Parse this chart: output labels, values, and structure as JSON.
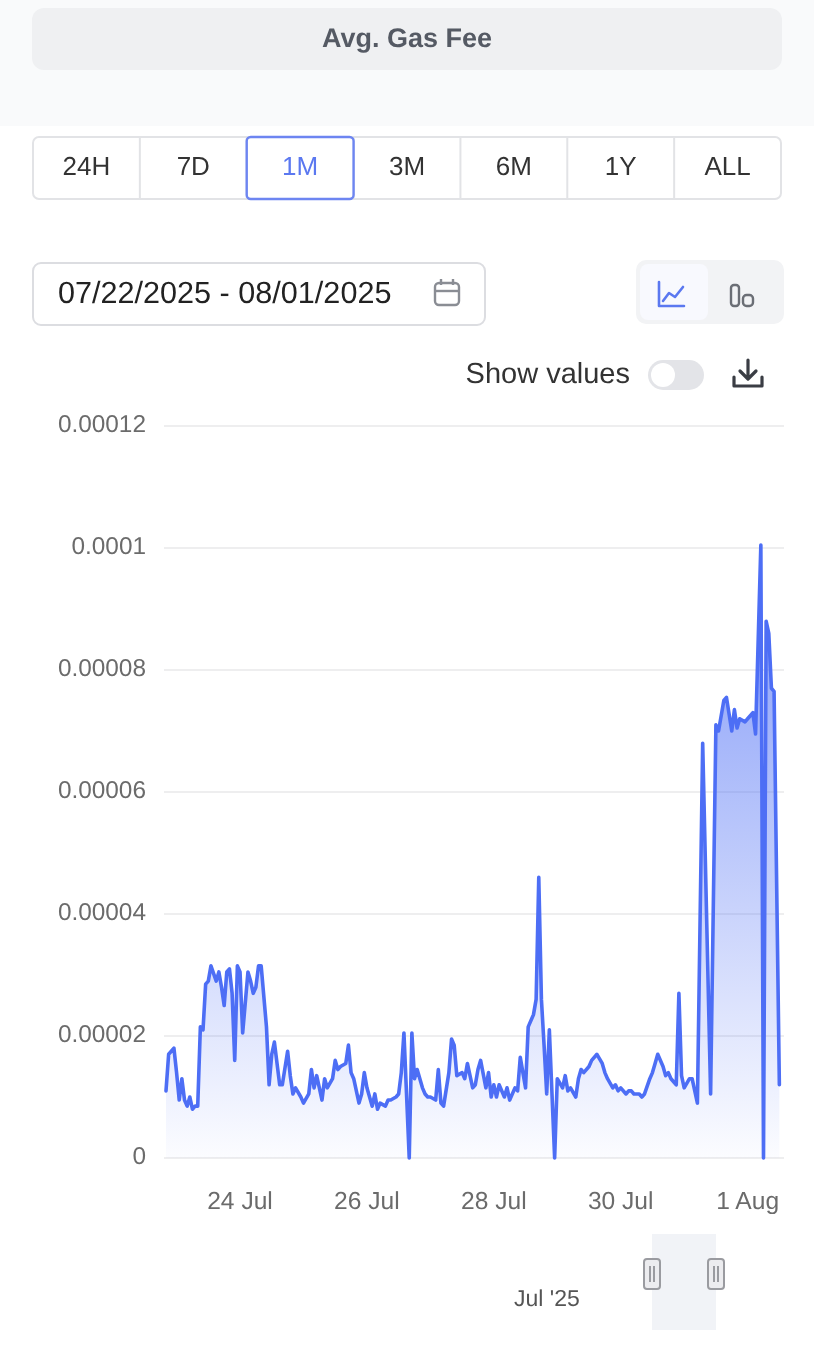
{
  "chart_data": {
    "type": "area",
    "title": "Avg. Gas Fee",
    "x": [
      "2025-07-22T20:00",
      "2025-07-22T21:00",
      "2025-07-22T23:00",
      "2025-07-23T00:00",
      "2025-07-23T01:00",
      "2025-07-23T02:00",
      "2025-07-23T03:00",
      "2025-07-23T04:00",
      "2025-07-23T05:00",
      "2025-07-23T06:00",
      "2025-07-23T07:00",
      "2025-07-23T08:00",
      "2025-07-23T09:00",
      "2025-07-23T10:00",
      "2025-07-23T11:00",
      "2025-07-23T12:00",
      "2025-07-23T13:00",
      "2025-07-23T15:00",
      "2025-07-23T16:00",
      "2025-07-23T17:00",
      "2025-07-23T18:00",
      "2025-07-23T19:00",
      "2025-07-23T20:00",
      "2025-07-23T21:00",
      "2025-07-23T22:00",
      "2025-07-23T23:00",
      "2025-07-24T00:00",
      "2025-07-24T01:00",
      "2025-07-24T03:00",
      "2025-07-24T04:00",
      "2025-07-24T05:00",
      "2025-07-24T06:00",
      "2025-07-24T07:00",
      "2025-07-24T08:00",
      "2025-07-24T10:00",
      "2025-07-24T11:00",
      "2025-07-24T12:00",
      "2025-07-24T13:00",
      "2025-07-24T15:00",
      "2025-07-24T16:00",
      "2025-07-24T18:00",
      "2025-07-24T19:00",
      "2025-07-24T20:00",
      "2025-07-24T21:00",
      "2025-07-24T23:00",
      "2025-07-25T00:00",
      "2025-07-25T02:00",
      "2025-07-25T03:00",
      "2025-07-25T04:00",
      "2025-07-25T05:00",
      "2025-07-25T07:00",
      "2025-07-25T08:00",
      "2025-07-25T09:00",
      "2025-07-25T11:00",
      "2025-07-25T12:00",
      "2025-07-25T13:00",
      "2025-07-25T14:00",
      "2025-07-25T16:00",
      "2025-07-25T17:00",
      "2025-07-25T18:00",
      "2025-07-25T19:00",
      "2025-07-25T21:00",
      "2025-07-25T22:00",
      "2025-07-25T23:00",
      "2025-07-26T00:00",
      "2025-07-26T02:00",
      "2025-07-26T03:00",
      "2025-07-26T04:00",
      "2025-07-26T05:00",
      "2025-07-26T07:00",
      "2025-07-26T08:00",
      "2025-07-26T09:00",
      "2025-07-26T11:00",
      "2025-07-26T12:00",
      "2025-07-26T13:00",
      "2025-07-26T14:00",
      "2025-07-26T16:00",
      "2025-07-26T17:00",
      "2025-07-26T18:00",
      "2025-07-26T19:00",
      "2025-07-26T21:00",
      "2025-07-26T22:00",
      "2025-07-26T23:00",
      "2025-07-27T00:00",
      "2025-07-27T02:00",
      "2025-07-27T03:00",
      "2025-07-27T04:00",
      "2025-07-27T05:00",
      "2025-07-27T07:00",
      "2025-07-27T08:00",
      "2025-07-27T09:00",
      "2025-07-27T10:00",
      "2025-07-27T12:00",
      "2025-07-27T13:00",
      "2025-07-27T14:00",
      "2025-07-27T16:00",
      "2025-07-27T17:00",
      "2025-07-27T18:00",
      "2025-07-27T19:00",
      "2025-07-27T21:00",
      "2025-07-27T22:00",
      "2025-07-27T23:00",
      "2025-07-28T00:00",
      "2025-07-28T01:00",
      "2025-07-28T02:00",
      "2025-07-28T04:00",
      "2025-07-28T05:00",
      "2025-07-28T06:00",
      "2025-07-28T08:00",
      "2025-07-28T09:00",
      "2025-07-28T10:00",
      "2025-07-28T12:00",
      "2025-07-28T13:00",
      "2025-07-28T15:00",
      "2025-07-28T16:00",
      "2025-07-28T17:00",
      "2025-07-28T18:00",
      "2025-07-28T19:00",
      "2025-07-28T20:00",
      "2025-07-28T21:00",
      "2025-07-28T23:00",
      "2025-07-29T00:00",
      "2025-07-29T02:00",
      "2025-07-29T03:00",
      "2025-07-29T04:00",
      "2025-07-29T05:00",
      "2025-07-29T07:00",
      "2025-07-29T08:00",
      "2025-07-29T09:00",
      "2025-07-29T10:00",
      "2025-07-29T12:00",
      "2025-07-29T13:00",
      "2025-07-29T15:00",
      "2025-07-29T17:00",
      "2025-07-29T18:00",
      "2025-07-29T19:00",
      "2025-07-29T21:00",
      "2025-07-29T22:00",
      "2025-07-29T23:00",
      "2025-07-30T00:00",
      "2025-07-30T02:00",
      "2025-07-30T03:00",
      "2025-07-30T04:00",
      "2025-07-30T05:00",
      "2025-07-30T07:00",
      "2025-07-30T08:00",
      "2025-07-30T09:00",
      "2025-07-30T11:00",
      "2025-07-30T12:00",
      "2025-07-30T13:00",
      "2025-07-30T14:00",
      "2025-07-30T16:00",
      "2025-07-30T17:00",
      "2025-07-30T18:00",
      "2025-07-30T19:00",
      "2025-07-30T21:00",
      "2025-07-30T22:00",
      "2025-07-30T23:00",
      "2025-07-31T00:00",
      "2025-07-31T02:00",
      "2025-07-31T03:00",
      "2025-07-31T04:00",
      "2025-07-31T05:00",
      "2025-07-31T07:00",
      "2025-07-31T10:00",
      "2025-07-31T12:00",
      "2025-07-31T13:00",
      "2025-07-31T15:00",
      "2025-07-31T16:00",
      "2025-07-31T18:00",
      "2025-07-31T19:00",
      "2025-07-31T20:00",
      "2025-07-31T21:00",
      "2025-07-31T23:00",
      "2025-08-01T00:00",
      "2025-08-01T02:00",
      "2025-08-01T03:00",
      "2025-08-01T05:00",
      "2025-08-01T06:00",
      "2025-08-01T07:00",
      "2025-08-01T08:00",
      "2025-08-01T09:00",
      "2025-08-01T10:00",
      "2025-08-01T12:00"
    ],
    "values": [
      1.1e-05,
      1.7e-05,
      1.8e-05,
      1.4e-05,
      9.5e-06,
      1.3e-05,
      9.5e-06,
      8.5e-06,
      1e-05,
      8e-06,
      8.5e-06,
      8.5e-06,
      2.15e-05,
      2.1e-05,
      2.85e-05,
      2.9e-05,
      3.15e-05,
      2.9e-05,
      3.05e-05,
      2.8e-05,
      2.5e-05,
      3.05e-05,
      3.1e-05,
      2.7e-05,
      1.6e-05,
      3.15e-05,
      3.05e-05,
      2.05e-05,
      3.05e-05,
      2.9e-05,
      2.7e-05,
      2.8e-05,
      3.15e-05,
      3.15e-05,
      2.15e-05,
      1.2e-05,
      1.7e-05,
      1.9e-05,
      1.2e-05,
      1.2e-05,
      1.75e-05,
      1.35e-05,
      1.05e-05,
      1.15e-05,
      1e-05,
      9e-06,
      1.05e-05,
      1.45e-05,
      1.15e-05,
      1.35e-05,
      9.5e-06,
      1.3e-05,
      1.15e-05,
      1.3e-05,
      1.6e-05,
      1.45e-05,
      1.5e-05,
      1.55e-05,
      1.85e-05,
      1.4e-05,
      1.3e-05,
      9e-06,
      1.05e-05,
      1.4e-05,
      1.15e-05,
      8.5e-06,
      1.05e-05,
      8e-06,
      9e-06,
      8.5e-06,
      9.5e-06,
      9.5e-06,
      1e-05,
      1.05e-05,
      1.4e-05,
      2.05e-05,
      0,
      2.05e-05,
      1.3e-05,
      1.45e-05,
      1.15e-05,
      1.05e-05,
      1e-05,
      1e-05,
      9.5e-06,
      1.45e-05,
      9e-06,
      8.5e-06,
      1.4e-05,
      1.95e-05,
      1.85e-05,
      1.35e-05,
      1.4e-05,
      1.3e-05,
      1.55e-05,
      1.15e-05,
      1.2e-05,
      1.45e-05,
      1.6e-05,
      1.15e-05,
      1.4e-05,
      1e-05,
      1.2e-05,
      1e-05,
      1.2e-05,
      1e-05,
      1.15e-05,
      9.5e-06,
      1.15e-05,
      1.1e-05,
      1.65e-05,
      1.15e-05,
      2.15e-05,
      2.35e-05,
      2.6e-05,
      4.6e-05,
      2.6e-05,
      1.85e-05,
      1.05e-05,
      2.1e-05,
      0,
      1.3e-05,
      1.15e-05,
      1.35e-05,
      1.1e-05,
      1.15e-05,
      1e-05,
      1.3e-05,
      1.45e-05,
      1.4e-05,
      1.5e-05,
      1.6e-05,
      1.7e-05,
      1.55e-05,
      1.4e-05,
      1.3e-05,
      1.15e-05,
      1.2e-05,
      1.1e-05,
      1.15e-05,
      1.05e-05,
      1.1e-05,
      1.1e-05,
      1.05e-05,
      1.05e-05,
      1e-05,
      1.05e-05,
      1.3e-05,
      1.4e-05,
      1.55e-05,
      1.7e-05,
      1.5e-05,
      1.35e-05,
      1.4e-05,
      1.3e-05,
      1.2e-05,
      2.7e-05,
      1.35e-05,
      1.15e-05,
      1.3e-05,
      1.3e-05,
      1.1e-05,
      9e-06,
      6.8e-05,
      1.05e-05,
      7.1e-05,
      7e-05,
      7.5e-05,
      7.55e-05,
      7e-05,
      7.35e-05,
      7.05e-05,
      7.2e-05,
      7.15e-05,
      7.2e-05,
      7.3e-05,
      6.95e-05,
      0.0001005,
      0,
      8.8e-05,
      8.6e-05,
      7.7e-05,
      7.65e-05,
      1.2e-05
    ],
    "color": "#4d6ef5",
    "xlim": [
      "2025-07-22T20:00",
      "2025-08-01T13:00"
    ],
    "xticks": [
      {
        "value": "2025-07-24",
        "label": "24 Jul"
      },
      {
        "value": "2025-07-26",
        "label": "26 Jul"
      },
      {
        "value": "2025-07-28",
        "label": "28 Jul"
      },
      {
        "value": "2025-07-30",
        "label": "30 Jul"
      },
      {
        "value": "2025-08-01",
        "label": "1 Aug"
      }
    ],
    "ylim": [
      0,
      0.00012
    ],
    "yticks": [
      0,
      {
        "value": 2e-05,
        "label": "0.00002"
      },
      {
        "value": 4e-05,
        "label": "0.00004"
      },
      {
        "value": 6e-05,
        "label": "0.00006"
      },
      {
        "value": 8e-05,
        "label": "0.00008"
      },
      0.0001,
      0.00012
    ],
    "grid": "y",
    "annotations": [
      "24H",
      "7D",
      "1M",
      "3M",
      "6M",
      "1Y",
      "ALL",
      "07/22/2025 - 08/01/2025",
      "Show values",
      "Jul '25"
    ]
  }
}
